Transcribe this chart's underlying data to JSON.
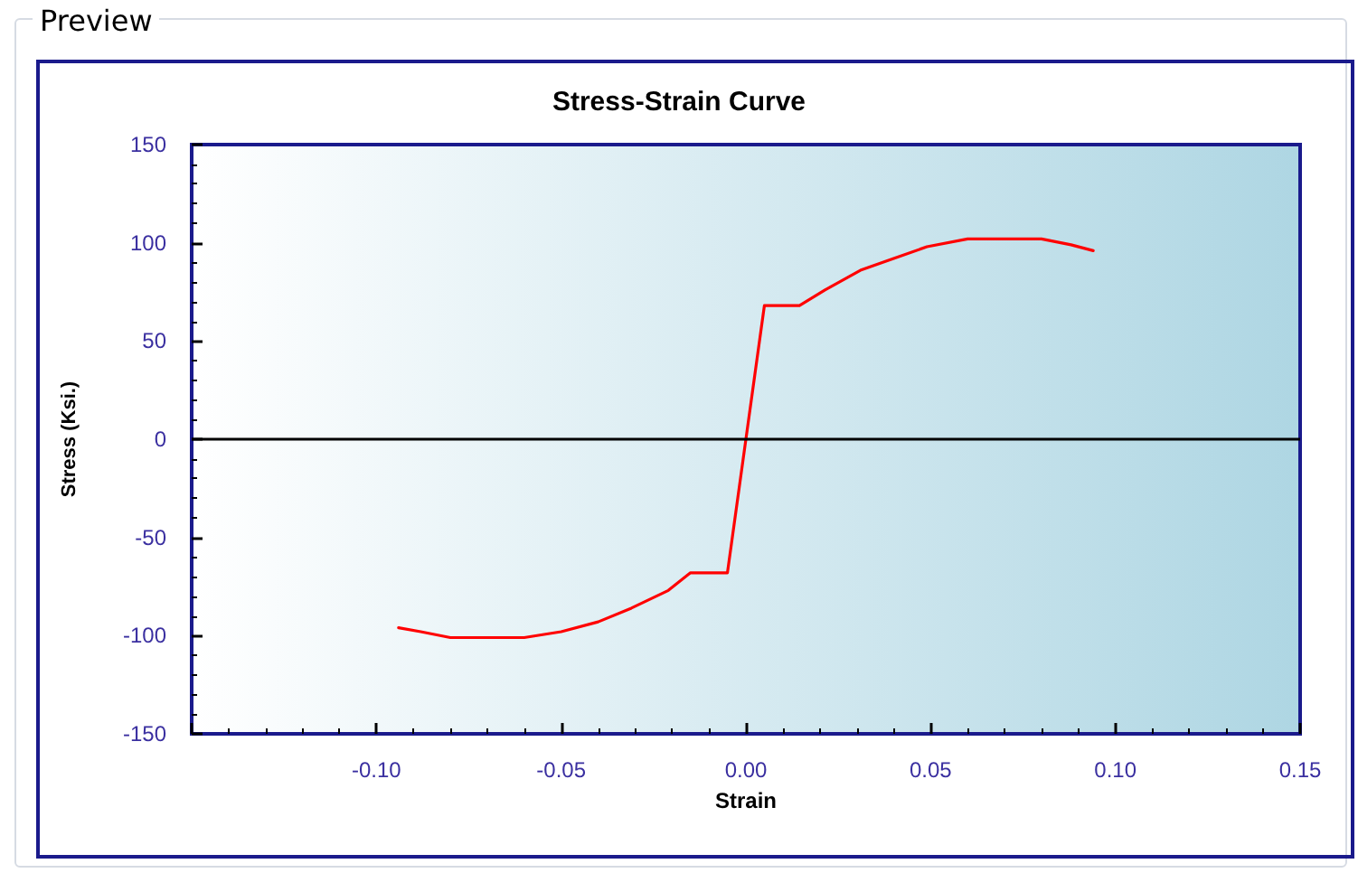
{
  "chart_data": {
    "type": "line",
    "title": "Stress-Strain Curve",
    "xlabel": "Strain",
    "ylabel": "Stress (Ksi.)",
    "annotations": [
      "Preview"
    ],
    "x": [
      -0.094,
      -0.088,
      -0.08,
      -0.07,
      -0.06,
      -0.05,
      -0.04,
      -0.031,
      -0.021,
      -0.015,
      -0.005,
      0.0,
      0.005,
      0.0145,
      0.0214,
      0.031,
      0.04,
      0.049,
      0.06,
      0.07,
      0.08,
      0.088,
      0.094
    ],
    "series": [
      {
        "color": "#ff0000",
        "values": [
          -96,
          -98,
          -101,
          -101,
          -101,
          -98,
          -93,
          -86,
          -77,
          -68,
          -68,
          0,
          68,
          68,
          76,
          86,
          92,
          98,
          102,
          102,
          102,
          99,
          96
        ]
      }
    ],
    "xlim": [
      -0.15,
      0.15
    ],
    "xticks": [
      {
        "value": -0.15,
        "label": null
      },
      {
        "value": -0.1,
        "label": "-0.10"
      },
      {
        "value": -0.05,
        "label": "-0.05"
      },
      {
        "value": 0,
        "label": "0.00"
      },
      {
        "value": 0.05,
        "label": "0.05"
      },
      {
        "value": 0.1,
        "label": "0.10"
      },
      0.15
    ],
    "ylim": [
      -150,
      150
    ],
    "yticks": [
      -150,
      -100,
      -50,
      0,
      50,
      100,
      150
    ],
    "ref_lines": [
      {
        "axis": "y",
        "value": 0,
        "color": "#000000"
      }
    ],
    "grid": false,
    "marker": "none",
    "line_style": "solid"
  }
}
